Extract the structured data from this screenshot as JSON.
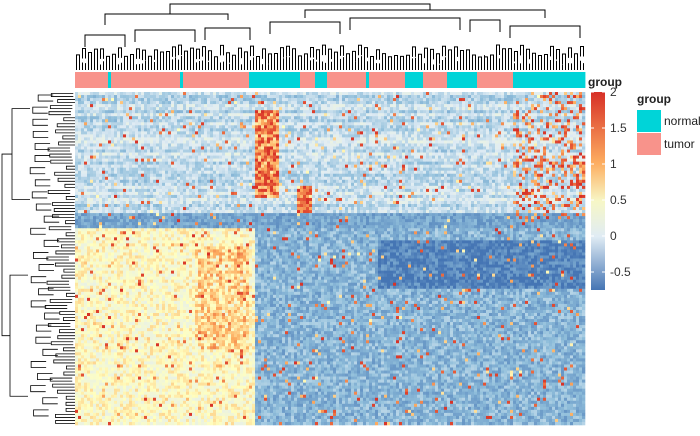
{
  "chart_data": {
    "type": "heatmap",
    "title": "",
    "colorbar": {
      "title": "group",
      "min": -0.75,
      "max": 2,
      "ticks": [
        "2",
        "1.5",
        "1",
        "0.5",
        "0",
        "-0.5"
      ],
      "tick_values": [
        2,
        1.5,
        1,
        0.5,
        0,
        -0.5
      ],
      "colors": {
        "low": "#4575b4",
        "mid": "#f7f7c6",
        "high": "#d73027"
      }
    },
    "legend": {
      "title": "group",
      "entries": [
        {
          "label": "normal",
          "color": "#00d4d8"
        },
        {
          "label": "tumor",
          "color": "#f8938b"
        }
      ],
      "placement": "right"
    },
    "annotation_track": "group",
    "dendrograms": [
      "columns-top",
      "rows-left"
    ],
    "value_range": [
      -0.75,
      2
    ]
  }
}
